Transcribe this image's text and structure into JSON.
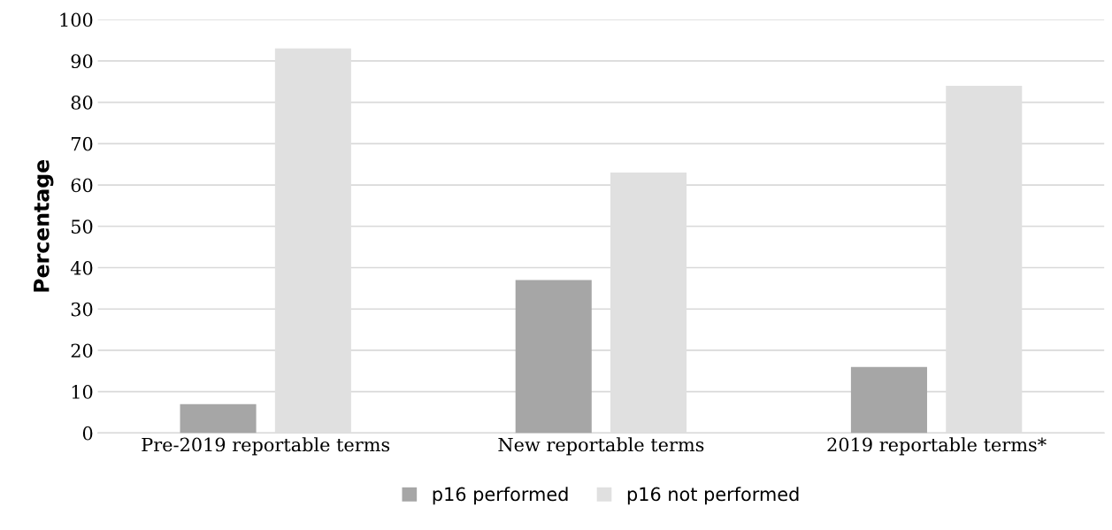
{
  "chart_data": {
    "type": "bar",
    "ylabel": "Percentage",
    "categories": [
      "Pre-2019 reportable terms",
      "New reportable terms",
      "2019 reportable terms*"
    ],
    "series": [
      {
        "name": "p16 performed",
        "color": "#a6a6a6",
        "values": [
          7,
          37,
          16
        ]
      },
      {
        "name": "p16 not performed",
        "color": "#e0e0e0",
        "values": [
          93,
          63,
          84
        ]
      }
    ],
    "ylim": [
      0,
      100
    ],
    "yticks": [
      0,
      10,
      20,
      30,
      40,
      50,
      60,
      70,
      80,
      90,
      100
    ],
    "grid": "y",
    "legend": "bottom"
  }
}
